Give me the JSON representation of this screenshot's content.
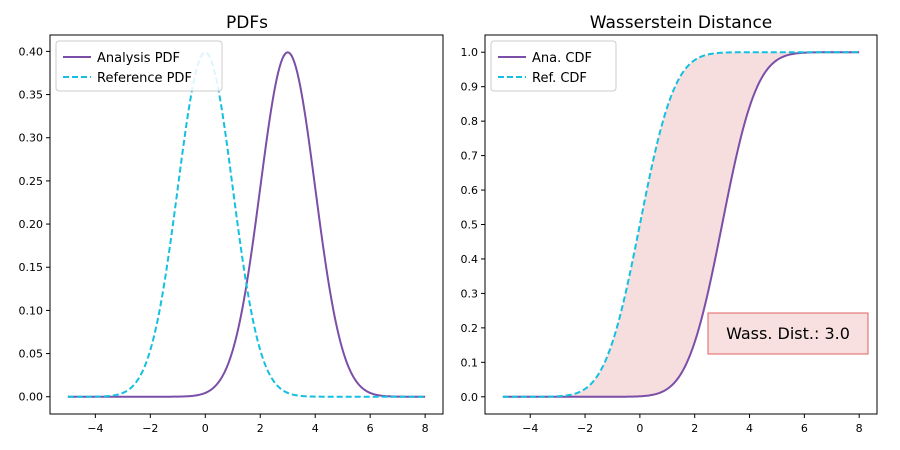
{
  "chart_data": [
    {
      "type": "line",
      "title": "PDFs",
      "xlim": [
        -5.65,
        8.65
      ],
      "ylim": [
        -0.02,
        0.419
      ],
      "xticks": [
        -4,
        -2,
        0,
        2,
        4,
        6,
        8
      ],
      "yticks": [
        0.0,
        0.05,
        0.1,
        0.15,
        0.2,
        0.25,
        0.3,
        0.35,
        0.4
      ],
      "ytick_labels": [
        "0.00",
        "0.05",
        "0.10",
        "0.15",
        "0.20",
        "0.25",
        "0.30",
        "0.35",
        "0.40"
      ],
      "xtick_labels": [
        "−4",
        "−2",
        "0",
        "2",
        "4",
        "6",
        "8"
      ],
      "legend_position": "top-left",
      "series": [
        {
          "name": "Analysis PDF",
          "kind": "normal-pdf",
          "mean": 3.0,
          "std": 1.0,
          "x_range": [
            -5,
            8
          ],
          "color": "#7b4ea8",
          "style": "solid"
        },
        {
          "name": "Reference PDF",
          "kind": "normal-pdf",
          "mean": 0.0,
          "std": 1.0,
          "x_range": [
            -5,
            8
          ],
          "color": "#14c0e0",
          "style": "dashed"
        }
      ]
    },
    {
      "type": "line",
      "title": "Wasserstein Distance",
      "xlim": [
        -5.65,
        8.65
      ],
      "ylim": [
        -0.05,
        1.05
      ],
      "xticks": [
        -4,
        -2,
        0,
        2,
        4,
        6,
        8
      ],
      "yticks": [
        0.0,
        0.1,
        0.2,
        0.3,
        0.4,
        0.5,
        0.6,
        0.7,
        0.8,
        0.9,
        1.0
      ],
      "ytick_labels": [
        "0.0",
        "0.1",
        "0.2",
        "0.3",
        "0.4",
        "0.5",
        "0.6",
        "0.7",
        "0.8",
        "0.9",
        "1.0"
      ],
      "xtick_labels": [
        "−4",
        "−2",
        "0",
        "2",
        "4",
        "6",
        "8"
      ],
      "legend_position": "top-left",
      "series": [
        {
          "name": "Ana. CDF",
          "kind": "normal-cdf",
          "mean": 3.0,
          "std": 1.0,
          "x_range": [
            -5,
            8
          ],
          "color": "#7b4ea8",
          "style": "solid"
        },
        {
          "name": "Ref. CDF",
          "kind": "normal-cdf",
          "mean": 0.0,
          "std": 1.0,
          "x_range": [
            -5,
            8
          ],
          "color": "#14c0e0",
          "style": "dashed"
        }
      ],
      "fill_between": {
        "color": "#f6dede"
      },
      "annotation": {
        "text": "Wass. Dist.: 3.0",
        "position": "lower-right",
        "box_fill": "#f8e0e0",
        "box_edge": "#e06060"
      }
    }
  ]
}
